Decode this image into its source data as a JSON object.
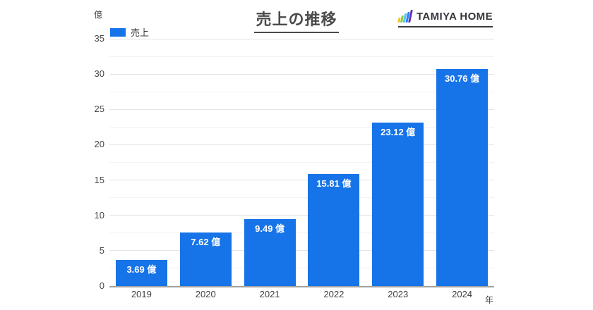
{
  "header": {
    "title": "売上の推移",
    "logo": {
      "text": "TAMIYA HOME",
      "icon": "mini-bar-chart-icon",
      "icon_colors": [
        "#f0c420",
        "#8dc63f",
        "#4fc3f7",
        "#2e7df6",
        "#5e35b1"
      ],
      "icon_bar_heights": [
        7,
        10,
        13,
        15,
        18
      ]
    }
  },
  "legend": {
    "label": "売上",
    "swatch_color": "#1673e8",
    "position": "top-left"
  },
  "axis": {
    "y_unit": "億",
    "x_unit": "年"
  },
  "colors": {
    "bar": "#1673e8",
    "bar_value_label": "#ffffff",
    "title": "#4a4a4a",
    "axis_line": "#a2a2a2",
    "gridline_major": "#e4e4e4",
    "gridline_minor": "#f2f2f2",
    "tick_text": "#3c4043",
    "background": "#ffffff"
  },
  "chart_data": {
    "type": "bar",
    "title": "売上の推移",
    "series_name": "売上",
    "categories": [
      "2019",
      "2020",
      "2021",
      "2022",
      "2023",
      "2024"
    ],
    "values": [
      3.69,
      7.62,
      9.49,
      15.81,
      23.12,
      30.76
    ],
    "value_labels": [
      "3.69 億",
      "7.62 億",
      "9.49 億",
      "15.81 億",
      "23.12 億",
      "30.76 億"
    ],
    "xlabel": "年",
    "ylabel": "億",
    "ylim": [
      0,
      35
    ],
    "y_tick_step": 5,
    "y_minor_step": 2.5,
    "y_tick_labels": [
      "0",
      "5",
      "10",
      "15",
      "20",
      "25",
      "30",
      "35"
    ],
    "grid": true,
    "legend_position": "top-left",
    "bar_color": "#1673e8",
    "label_color": "#ffffff"
  }
}
